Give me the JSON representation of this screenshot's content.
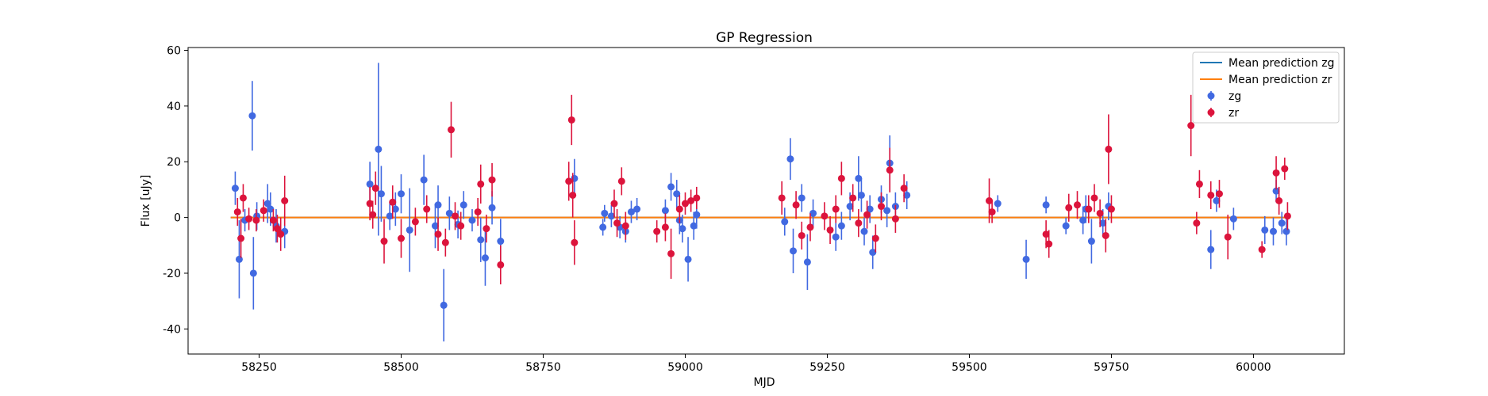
{
  "chart_data": {
    "type": "scatter",
    "title": "GP Regression",
    "xlabel": "MJD",
    "ylabel": "Flux [uJy]",
    "xlim": [
      58125,
      60160
    ],
    "ylim": [
      -49,
      61
    ],
    "xticks": [
      58250,
      58500,
      58750,
      59000,
      59250,
      59500,
      59750,
      60000
    ],
    "yticks": [
      -40,
      -20,
      0,
      20,
      40,
      60
    ],
    "grid": false,
    "legend_position": "top-right",
    "legend": [
      {
        "label": "Mean prediction zg",
        "kind": "line",
        "color": "#1f77b4"
      },
      {
        "label": "Mean prediction zr",
        "kind": "line",
        "color": "#ff7f0e"
      },
      {
        "label": "zg",
        "kind": "errorbar",
        "color": "#4169e1"
      },
      {
        "label": "zr",
        "kind": "errorbar",
        "color": "#dc143c"
      }
    ],
    "series": [
      {
        "name": "zg",
        "color": "#4169e1",
        "points": [
          {
            "x": 58208,
            "y": 10.5,
            "err": 6
          },
          {
            "x": 58215,
            "y": -15,
            "err": 14
          },
          {
            "x": 58225,
            "y": -1,
            "err": 4
          },
          {
            "x": 58238,
            "y": 36.5,
            "err": 12.5
          },
          {
            "x": 58240,
            "y": -20,
            "err": 13
          },
          {
            "x": 58246,
            "y": 0.5,
            "err": 5
          },
          {
            "x": 58265,
            "y": 5,
            "err": 7
          },
          {
            "x": 58270,
            "y": 3,
            "err": 6
          },
          {
            "x": 58280,
            "y": -3,
            "err": 6
          },
          {
            "x": 58295,
            "y": -5,
            "err": 6
          },
          {
            "x": 58445,
            "y": 12,
            "err": 8
          },
          {
            "x": 58460,
            "y": 24.5,
            "err": 31
          },
          {
            "x": 58465,
            "y": 8.5,
            "err": 10
          },
          {
            "x": 58480,
            "y": 0.5,
            "err": 5
          },
          {
            "x": 58490,
            "y": 3,
            "err": 6
          },
          {
            "x": 58500,
            "y": 8.5,
            "err": 7
          },
          {
            "x": 58515,
            "y": -4.5,
            "err": 15
          },
          {
            "x": 58540,
            "y": 13.5,
            "err": 9
          },
          {
            "x": 58560,
            "y": -3,
            "err": 8
          },
          {
            "x": 58565,
            "y": 4.5,
            "err": 7
          },
          {
            "x": 58575,
            "y": -31.5,
            "err": 13
          },
          {
            "x": 58585,
            "y": 1.5,
            "err": 6
          },
          {
            "x": 58600,
            "y": -2.5,
            "err": 5
          },
          {
            "x": 58610,
            "y": 4.5,
            "err": 5
          },
          {
            "x": 58625,
            "y": -1,
            "err": 4
          },
          {
            "x": 58640,
            "y": -8,
            "err": 8
          },
          {
            "x": 58648,
            "y": -14.5,
            "err": 10
          },
          {
            "x": 58660,
            "y": 3.5,
            "err": 6
          },
          {
            "x": 58675,
            "y": -8.5,
            "err": 8
          },
          {
            "x": 58805,
            "y": 14,
            "err": 7
          },
          {
            "x": 58855,
            "y": -3.5,
            "err": 3
          },
          {
            "x": 58858,
            "y": 1.5,
            "err": 3
          },
          {
            "x": 58870,
            "y": 0.5,
            "err": 4
          },
          {
            "x": 58885,
            "y": -3.5,
            "err": 4
          },
          {
            "x": 58895,
            "y": -5,
            "err": 4
          },
          {
            "x": 58905,
            "y": 2,
            "err": 4
          },
          {
            "x": 58915,
            "y": 3,
            "err": 4
          },
          {
            "x": 58965,
            "y": 2.5,
            "err": 4
          },
          {
            "x": 58975,
            "y": 11,
            "err": 5
          },
          {
            "x": 58985,
            "y": 8.5,
            "err": 5
          },
          {
            "x": 58990,
            "y": -1,
            "err": 5
          },
          {
            "x": 58995,
            "y": -4,
            "err": 5
          },
          {
            "x": 59005,
            "y": -15,
            "err": 8
          },
          {
            "x": 59015,
            "y": -3,
            "err": 5
          },
          {
            "x": 59020,
            "y": 1,
            "err": 5
          },
          {
            "x": 59175,
            "y": -1.5,
            "err": 5
          },
          {
            "x": 59185,
            "y": 21,
            "err": 7.5
          },
          {
            "x": 59190,
            "y": -12,
            "err": 8
          },
          {
            "x": 59205,
            "y": 7,
            "err": 5
          },
          {
            "x": 59215,
            "y": -16,
            "err": 10
          },
          {
            "x": 59225,
            "y": 1.5,
            "err": 5
          },
          {
            "x": 59265,
            "y": -7,
            "err": 5
          },
          {
            "x": 59275,
            "y": -3,
            "err": 5
          },
          {
            "x": 59290,
            "y": 4,
            "err": 5
          },
          {
            "x": 59305,
            "y": 14,
            "err": 8
          },
          {
            "x": 59310,
            "y": 8,
            "err": 6
          },
          {
            "x": 59315,
            "y": -5,
            "err": 5
          },
          {
            "x": 59325,
            "y": 3,
            "err": 5
          },
          {
            "x": 59330,
            "y": -12.5,
            "err": 6
          },
          {
            "x": 59345,
            "y": 6.5,
            "err": 5
          },
          {
            "x": 59355,
            "y": 2.5,
            "err": 6
          },
          {
            "x": 59360,
            "y": 19.5,
            "err": 10
          },
          {
            "x": 59370,
            "y": 4,
            "err": 5
          },
          {
            "x": 59390,
            "y": 8,
            "err": 5
          },
          {
            "x": 59550,
            "y": 5,
            "err": 3
          },
          {
            "x": 59600,
            "y": -15,
            "err": 7
          },
          {
            "x": 59635,
            "y": 4.5,
            "err": 3
          },
          {
            "x": 59670,
            "y": -3,
            "err": 3
          },
          {
            "x": 59700,
            "y": -1,
            "err": 5
          },
          {
            "x": 59705,
            "y": 3,
            "err": 5
          },
          {
            "x": 59715,
            "y": -8.5,
            "err": 8
          },
          {
            "x": 59735,
            "y": -2,
            "err": 5
          },
          {
            "x": 59745,
            "y": 4,
            "err": 5
          },
          {
            "x": 59925,
            "y": -11.5,
            "err": 7
          },
          {
            "x": 59935,
            "y": 6,
            "err": 4
          },
          {
            "x": 59965,
            "y": -0.5,
            "err": 4
          },
          {
            "x": 60020,
            "y": -4.5,
            "err": 5
          },
          {
            "x": 60035,
            "y": -5,
            "err": 5
          },
          {
            "x": 60040,
            "y": 9.5,
            "err": 4
          },
          {
            "x": 60050,
            "y": -2,
            "err": 4
          },
          {
            "x": 60058,
            "y": -5,
            "err": 5
          }
        ]
      },
      {
        "name": "zr",
        "color": "#dc143c",
        "points": [
          {
            "x": 58212,
            "y": 2,
            "err": 5
          },
          {
            "x": 58218,
            "y": -7.5,
            "err": 7
          },
          {
            "x": 58222,
            "y": 7,
            "err": 5
          },
          {
            "x": 58232,
            "y": -0.5,
            "err": 4
          },
          {
            "x": 58245,
            "y": -1,
            "err": 4
          },
          {
            "x": 58258,
            "y": 2.5,
            "err": 4
          },
          {
            "x": 58275,
            "y": -1,
            "err": 4
          },
          {
            "x": 58282,
            "y": -4,
            "err": 5
          },
          {
            "x": 58288,
            "y": -6,
            "err": 6
          },
          {
            "x": 58295,
            "y": 6,
            "err": 9
          },
          {
            "x": 58445,
            "y": 5,
            "err": 6
          },
          {
            "x": 58450,
            "y": 1,
            "err": 5
          },
          {
            "x": 58455,
            "y": 10.5,
            "err": 6
          },
          {
            "x": 58470,
            "y": -8.5,
            "err": 8
          },
          {
            "x": 58485,
            "y": 5.5,
            "err": 6
          },
          {
            "x": 58500,
            "y": -7.5,
            "err": 7
          },
          {
            "x": 58525,
            "y": -1.5,
            "err": 5
          },
          {
            "x": 58545,
            "y": 3,
            "err": 5
          },
          {
            "x": 58565,
            "y": -6,
            "err": 6
          },
          {
            "x": 58578,
            "y": -9,
            "err": 5
          },
          {
            "x": 58588,
            "y": 31.5,
            "err": 10
          },
          {
            "x": 58595,
            "y": 0.5,
            "err": 5
          },
          {
            "x": 58605,
            "y": -3,
            "err": 5
          },
          {
            "x": 58635,
            "y": 2,
            "err": 5
          },
          {
            "x": 58640,
            "y": 12,
            "err": 7
          },
          {
            "x": 58650,
            "y": -4,
            "err": 5
          },
          {
            "x": 58660,
            "y": 13.5,
            "err": 6
          },
          {
            "x": 58675,
            "y": -17,
            "err": 7
          },
          {
            "x": 58795,
            "y": 13,
            "err": 7
          },
          {
            "x": 58800,
            "y": 35,
            "err": 9
          },
          {
            "x": 58802,
            "y": 8,
            "err": 8
          },
          {
            "x": 58805,
            "y": -9,
            "err": 8
          },
          {
            "x": 58875,
            "y": 5,
            "err": 5
          },
          {
            "x": 58880,
            "y": -2,
            "err": 5
          },
          {
            "x": 58888,
            "y": 13,
            "err": 5
          },
          {
            "x": 58895,
            "y": -3,
            "err": 5
          },
          {
            "x": 58950,
            "y": -5,
            "err": 4
          },
          {
            "x": 58965,
            "y": -3.5,
            "err": 5
          },
          {
            "x": 58975,
            "y": -13,
            "err": 9
          },
          {
            "x": 58990,
            "y": 3,
            "err": 5
          },
          {
            "x": 59000,
            "y": 5,
            "err": 4
          },
          {
            "x": 59010,
            "y": 6,
            "err": 4
          },
          {
            "x": 59020,
            "y": 7,
            "err": 4
          },
          {
            "x": 59170,
            "y": 7,
            "err": 6
          },
          {
            "x": 59195,
            "y": 4.5,
            "err": 5
          },
          {
            "x": 59205,
            "y": -6.5,
            "err": 5
          },
          {
            "x": 59220,
            "y": -3.5,
            "err": 5
          },
          {
            "x": 59245,
            "y": 0.5,
            "err": 5
          },
          {
            "x": 59255,
            "y": -4.5,
            "err": 5
          },
          {
            "x": 59265,
            "y": 3,
            "err": 5
          },
          {
            "x": 59275,
            "y": 14,
            "err": 6
          },
          {
            "x": 59295,
            "y": 7,
            "err": 5
          },
          {
            "x": 59305,
            "y": -2,
            "err": 5
          },
          {
            "x": 59320,
            "y": 1,
            "err": 5
          },
          {
            "x": 59335,
            "y": -7.5,
            "err": 5
          },
          {
            "x": 59345,
            "y": 4,
            "err": 5
          },
          {
            "x": 59360,
            "y": 17,
            "err": 8
          },
          {
            "x": 59370,
            "y": -0.5,
            "err": 5
          },
          {
            "x": 59385,
            "y": 10.5,
            "err": 5
          },
          {
            "x": 59535,
            "y": 6,
            "err": 8
          },
          {
            "x": 59540,
            "y": 2,
            "err": 4
          },
          {
            "x": 59635,
            "y": -6,
            "err": 5
          },
          {
            "x": 59640,
            "y": -9.5,
            "err": 5
          },
          {
            "x": 59675,
            "y": 3.5,
            "err": 5
          },
          {
            "x": 59690,
            "y": 4.5,
            "err": 5
          },
          {
            "x": 59710,
            "y": 3,
            "err": 5
          },
          {
            "x": 59720,
            "y": 7,
            "err": 5
          },
          {
            "x": 59730,
            "y": 1.5,
            "err": 5
          },
          {
            "x": 59740,
            "y": -6.5,
            "err": 6
          },
          {
            "x": 59745,
            "y": 24.5,
            "err": 12.5
          },
          {
            "x": 59750,
            "y": 3,
            "err": 5
          },
          {
            "x": 59890,
            "y": 33,
            "err": 11
          },
          {
            "x": 59900,
            "y": -2,
            "err": 4
          },
          {
            "x": 59905,
            "y": 12,
            "err": 5
          },
          {
            "x": 59925,
            "y": 8,
            "err": 5
          },
          {
            "x": 59940,
            "y": 8.5,
            "err": 5
          },
          {
            "x": 59955,
            "y": -7,
            "err": 8
          },
          {
            "x": 60015,
            "y": -11.5,
            "err": 3
          },
          {
            "x": 60040,
            "y": 16,
            "err": 6
          },
          {
            "x": 60045,
            "y": 6,
            "err": 5
          },
          {
            "x": 60055,
            "y": 17.5,
            "err": 4
          },
          {
            "x": 60060,
            "y": 0.5,
            "err": 5
          }
        ]
      },
      {
        "name": "Mean prediction zg",
        "color": "#1f77b4",
        "kind": "line",
        "x": [
          58200,
          60065
        ],
        "y": [
          0,
          0
        ]
      },
      {
        "name": "Mean prediction zr",
        "color": "#ff7f0e",
        "kind": "line",
        "x": [
          58200,
          60065
        ],
        "y": [
          0,
          0
        ]
      }
    ]
  }
}
